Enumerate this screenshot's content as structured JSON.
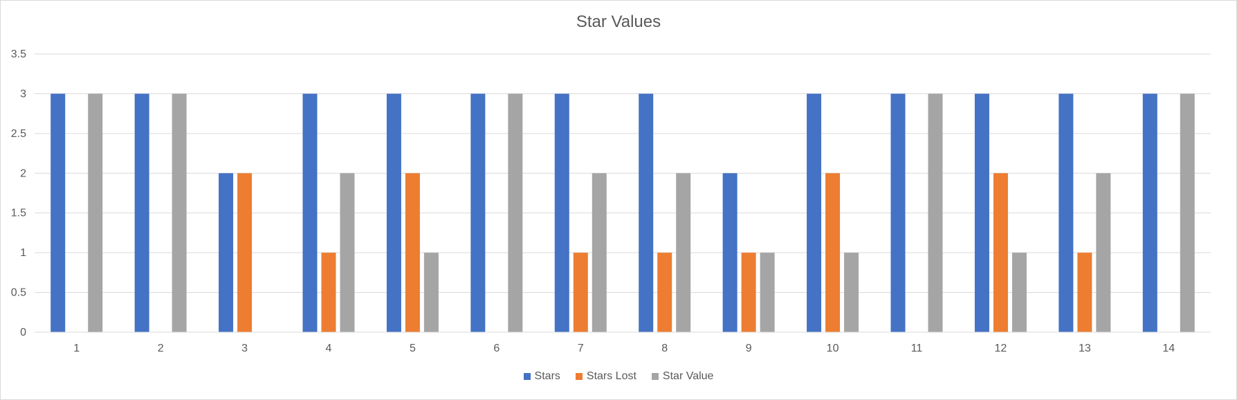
{
  "chart_data": {
    "type": "bar",
    "title": "Star Values",
    "xlabel": "",
    "ylabel": "",
    "categories": [
      "1",
      "2",
      "3",
      "4",
      "5",
      "6",
      "7",
      "8",
      "9",
      "10",
      "11",
      "12",
      "13",
      "14"
    ],
    "series": [
      {
        "name": "Stars",
        "color": "#4472c4",
        "values": [
          3,
          3,
          2,
          3,
          3,
          3,
          3,
          3,
          2,
          3,
          3,
          3,
          3,
          3
        ]
      },
      {
        "name": "Stars Lost",
        "color": "#ed7d31",
        "values": [
          0,
          0,
          2,
          1,
          2,
          0,
          1,
          1,
          1,
          2,
          0,
          2,
          1,
          0
        ]
      },
      {
        "name": "Star Value",
        "color": "#a5a5a5",
        "values": [
          3,
          3,
          0,
          2,
          1,
          3,
          2,
          2,
          1,
          1,
          3,
          1,
          2,
          3
        ]
      }
    ],
    "ylim": [
      0,
      3.5
    ],
    "yticks": [
      "0",
      "0.5",
      "1",
      "1.5",
      "2",
      "2.5",
      "3",
      "3.5"
    ],
    "grid": true,
    "legend_position": "bottom"
  }
}
